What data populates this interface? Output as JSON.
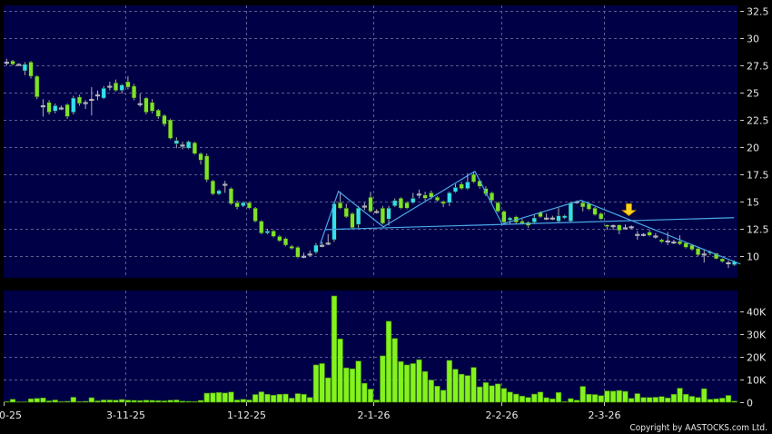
{
  "chart_data": [
    {
      "type": "candlestick",
      "panel": "price",
      "ylim": [
        8.0,
        33.0
      ],
      "yticks": [
        "32.5",
        "30",
        "27.5",
        "25",
        "22.5",
        "20",
        "17.5",
        "15",
        "12.5",
        "10"
      ],
      "grid": true,
      "x_tick_labels": [
        {
          "index": 0,
          "label": "0-25"
        },
        {
          "index": 20,
          "label": "3-11-25"
        },
        {
          "index": 40,
          "label": "1-12-25"
        },
        {
          "index": 61,
          "label": "2-1-26"
        },
        {
          "index": 82,
          "label": "2-2-26"
        },
        {
          "index": 99,
          "label": "2-3-26"
        }
      ],
      "colors": {
        "up": "#33dff0",
        "down": "#7fe22a",
        "flat": "#a8a8a8",
        "background": "#000046",
        "grid": "#5c5c92",
        "trendline": "#4aa8e8",
        "arrow": "#ffd21a"
      },
      "ohlc_fields": [
        "open",
        "high",
        "low",
        "close"
      ],
      "ohlc": [
        [
          27.8,
          28.1,
          27.5,
          27.8
        ],
        [
          27.9,
          28.0,
          27.5,
          27.6
        ],
        [
          27.6,
          27.7,
          27.5,
          27.6
        ],
        [
          27.0,
          27.8,
          26.6,
          27.6
        ],
        [
          27.8,
          27.9,
          26.3,
          26.5
        ],
        [
          26.5,
          26.6,
          24.4,
          24.6
        ],
        [
          23.8,
          24.4,
          22.8,
          23.8
        ],
        [
          24.1,
          24.3,
          23.0,
          23.2
        ],
        [
          23.3,
          24.0,
          23.1,
          23.8
        ],
        [
          23.6,
          23.8,
          23.4,
          23.6
        ],
        [
          23.9,
          24.0,
          22.6,
          22.8
        ],
        [
          23.2,
          24.7,
          23.0,
          24.5
        ],
        [
          24.6,
          24.8,
          23.8,
          24.0
        ],
        [
          24.1,
          24.3,
          23.5,
          24.1
        ],
        [
          24.4,
          25.5,
          22.9,
          24.4
        ],
        [
          24.8,
          25.2,
          24.3,
          24.8
        ],
        [
          24.5,
          25.6,
          24.4,
          25.4
        ],
        [
          25.6,
          26.0,
          25.2,
          25.6
        ],
        [
          25.9,
          26.2,
          25.1,
          25.2
        ],
        [
          25.2,
          25.8,
          24.9,
          25.7
        ],
        [
          26.0,
          26.5,
          25.3,
          25.5
        ],
        [
          25.6,
          25.8,
          24.3,
          24.5
        ],
        [
          24.0,
          24.9,
          23.7,
          24.0
        ],
        [
          24.5,
          24.6,
          23.0,
          23.2
        ],
        [
          24.1,
          24.4,
          23.1,
          23.3
        ],
        [
          23.4,
          23.5,
          22.6,
          22.8
        ],
        [
          22.9,
          23.0,
          21.9,
          22.1
        ],
        [
          22.5,
          22.6,
          20.7,
          20.8
        ],
        [
          20.3,
          20.9,
          19.9,
          20.6
        ],
        [
          20.2,
          20.5,
          19.8,
          20.2
        ],
        [
          19.9,
          20.6,
          19.8,
          20.5
        ],
        [
          20.4,
          20.5,
          19.3,
          19.4
        ],
        [
          19.4,
          19.5,
          18.4,
          18.8
        ],
        [
          19.2,
          19.4,
          16.8,
          17.0
        ],
        [
          16.9,
          17.0,
          15.6,
          15.7
        ],
        [
          15.7,
          16.1,
          15.6,
          16.0
        ],
        [
          16.6,
          16.9,
          15.8,
          16.6
        ],
        [
          16.2,
          16.3,
          14.7,
          14.8
        ],
        [
          14.9,
          15.1,
          14.3,
          14.5
        ],
        [
          14.6,
          15.0,
          14.5,
          14.9
        ],
        [
          14.9,
          15.0,
          14.3,
          14.4
        ],
        [
          14.4,
          14.5,
          13.1,
          13.2
        ],
        [
          13.2,
          13.3,
          12.0,
          12.1
        ],
        [
          12.1,
          12.5,
          12.0,
          12.3
        ],
        [
          12.3,
          12.4,
          11.7,
          11.8
        ],
        [
          11.8,
          11.9,
          11.3,
          11.4
        ],
        [
          11.6,
          11.7,
          10.9,
          11.0
        ],
        [
          10.9,
          11.0,
          10.6,
          10.7
        ],
        [
          10.8,
          10.9,
          9.8,
          9.9
        ],
        [
          10.0,
          10.3,
          9.8,
          10.0
        ],
        [
          10.2,
          10.5,
          10.0,
          10.2
        ],
        [
          10.35,
          11.2,
          10.2,
          11.0
        ],
        [
          11.0,
          11.3,
          10.8,
          11.0
        ],
        [
          11.2,
          12.0,
          11.0,
          11.2
        ],
        [
          11.5,
          15.0,
          11.3,
          14.8
        ],
        [
          14.9,
          15.9,
          14.3,
          14.4
        ],
        [
          14.4,
          14.8,
          13.5,
          13.6
        ],
        [
          13.9,
          14.0,
          12.5,
          12.6
        ],
        [
          12.9,
          14.6,
          12.6,
          14.4
        ],
        [
          14.6,
          14.9,
          14.2,
          14.6
        ],
        [
          15.4,
          15.9,
          14.0,
          14.1
        ],
        [
          14.1,
          14.3,
          13.9,
          14.1
        ],
        [
          14.4,
          14.6,
          12.9,
          13.0
        ],
        [
          13.4,
          14.6,
          12.8,
          14.4
        ],
        [
          14.6,
          15.3,
          14.5,
          15.1
        ],
        [
          15.3,
          15.4,
          14.3,
          14.4
        ],
        [
          14.9,
          15.0,
          14.3,
          14.4
        ],
        [
          14.9,
          15.8,
          14.8,
          15.3
        ],
        [
          15.7,
          16.1,
          15.3,
          15.7
        ],
        [
          15.6,
          15.9,
          15.1,
          15.3
        ],
        [
          15.8,
          16.0,
          15.2,
          15.4
        ],
        [
          15.4,
          15.5,
          15.0,
          15.1
        ],
        [
          15.0,
          15.1,
          14.5,
          14.8
        ],
        [
          14.9,
          15.9,
          14.6,
          15.8
        ],
        [
          15.9,
          16.6,
          15.8,
          16.3
        ],
        [
          16.6,
          16.8,
          16.1,
          16.2
        ],
        [
          16.2,
          17.6,
          16.1,
          16.8
        ],
        [
          17.5,
          17.7,
          16.7,
          16.8
        ],
        [
          16.9,
          17.0,
          16.2,
          16.4
        ],
        [
          16.2,
          16.4,
          15.5,
          15.7
        ],
        [
          15.8,
          15.9,
          14.9,
          15.1
        ],
        [
          14.9,
          15.0,
          14.0,
          14.1
        ],
        [
          14.1,
          14.2,
          12.9,
          13.1
        ],
        [
          13.3,
          13.6,
          12.9,
          13.5
        ],
        [
          13.6,
          13.7,
          13.0,
          13.1
        ],
        [
          13.2,
          13.4,
          12.9,
          13.0
        ],
        [
          13.1,
          13.2,
          12.6,
          12.8
        ],
        [
          13.1,
          13.8,
          13.0,
          13.5
        ],
        [
          14.0,
          14.1,
          13.5,
          13.6
        ],
        [
          13.5,
          13.9,
          13.3,
          13.5
        ],
        [
          13.5,
          13.7,
          13.3,
          13.5
        ],
        [
          13.2,
          14.4,
          13.1,
          13.7
        ],
        [
          13.5,
          13.8,
          13.4,
          13.7
        ],
        [
          13.2,
          15.0,
          13.1,
          14.9
        ],
        [
          15.0,
          15.1,
          14.8,
          15.0
        ],
        [
          14.9,
          15.0,
          14.1,
          14.5
        ],
        [
          14.8,
          14.9,
          14.2,
          14.3
        ],
        [
          14.4,
          14.5,
          13.7,
          13.8
        ],
        [
          13.9,
          14.0,
          13.3,
          13.4
        ],
        [
          12.85,
          12.9,
          12.4,
          12.7
        ],
        [
          12.8,
          12.9,
          12.4,
          12.8
        ],
        [
          12.85,
          12.9,
          12.0,
          12.35
        ],
        [
          12.6,
          12.9,
          12.5,
          12.6
        ],
        [
          12.7,
          12.8,
          12.5,
          12.7
        ],
        [
          12.0,
          12.3,
          11.5,
          12.0
        ],
        [
          12.0,
          12.1,
          11.8,
          12.0
        ],
        [
          12.2,
          12.4,
          11.8,
          11.9
        ],
        [
          11.85,
          12.1,
          11.6,
          11.85
        ],
        [
          11.5,
          11.6,
          11.2,
          11.3
        ],
        [
          11.4,
          12.2,
          11.0,
          11.4
        ],
        [
          11.3,
          11.5,
          11.1,
          11.3
        ],
        [
          11.35,
          11.9,
          11.0,
          11.1
        ],
        [
          11.2,
          11.3,
          10.7,
          10.8
        ],
        [
          11.0,
          11.1,
          10.5,
          10.6
        ],
        [
          10.7,
          10.8,
          10.0,
          10.1
        ],
        [
          10.2,
          10.6,
          9.4,
          10.2
        ],
        [
          10.25,
          10.5,
          10.1,
          10.4
        ],
        [
          10.25,
          10.3,
          9.7,
          9.75
        ],
        [
          9.75,
          9.8,
          9.4,
          9.5
        ],
        [
          9.4,
          9.6,
          8.9,
          9.4
        ],
        [
          9.2,
          9.6,
          9.1,
          9.5
        ]
      ],
      "annotations": {
        "zigzag": [
          [
            51.7,
            11.1
          ],
          [
            54.7,
            15.94
          ],
          [
            62.1,
            12.68
          ],
          [
            77.2,
            17.78
          ],
          [
            81.7,
            12.93
          ],
          [
            94.7,
            15.11
          ],
          [
            121,
            9.26
          ]
        ],
        "neckline": [
          [
            52.5,
            12.43
          ],
          [
            119.9,
            13.52
          ]
        ],
        "arrow": {
          "index": 102.6,
          "from_price": 14.8,
          "to_price": 13.7,
          "direction": "down"
        }
      }
    },
    {
      "type": "bar",
      "panel": "volume",
      "unit": "K",
      "ylim": [
        0,
        49.4
      ],
      "yticks": [
        "40K",
        "30K",
        "20K",
        "10K",
        "0"
      ],
      "ytick_values": [
        40,
        30,
        20,
        10,
        0
      ],
      "grid": true,
      "color": "#84f21c",
      "values": [
        0.3,
        1.3,
        0.2,
        0.2,
        1.5,
        1.7,
        1.9,
        0.6,
        1.0,
        0.3,
        0.4,
        2.2,
        0.3,
        0.4,
        2.0,
        0.6,
        1.0,
        1.0,
        0.9,
        1.2,
        0.9,
        0.8,
        0.7,
        0.9,
        0.8,
        0.7,
        0.6,
        0.9,
        1.0,
        0.5,
        0.4,
        0.3,
        0.8,
        4.0,
        4.1,
        4.3,
        4.1,
        4.5,
        1.0,
        1.3,
        1.0,
        3.4,
        4.6,
        3.5,
        3.1,
        3.5,
        3.6,
        1.8,
        3.8,
        3.5,
        2.1,
        16.5,
        17.1,
        10.8,
        47.0,
        28.0,
        15.2,
        14.8,
        18.2,
        8.4,
        5.8,
        1.0,
        20.5,
        35.8,
        28.2,
        18.0,
        16.5,
        17.1,
        18.8,
        13.6,
        9.8,
        7.1,
        5.3,
        18.5,
        14.6,
        12.4,
        11.8,
        15.4,
        6.8,
        8.7,
        7.3,
        8.1,
        6.1,
        4.5,
        3.6,
        2.7,
        2.1,
        3.6,
        4.5,
        2.0,
        1.5,
        4.3,
        0.3,
        1.6,
        0.9,
        7.0,
        3.5,
        3.4,
        2.9,
        5.0,
        4.9,
        5.2,
        4.8,
        1.7,
        3.8,
        2.1,
        2.1,
        2.2,
        2.5,
        1.9,
        3.5,
        6.2,
        3.5,
        2.6,
        2.1,
        6.0,
        1.3,
        1.5,
        1.8,
        3.0,
        0.5
      ]
    }
  ],
  "footer": {
    "copyright": "Copyright by AASTOCKS.com Ltd."
  }
}
